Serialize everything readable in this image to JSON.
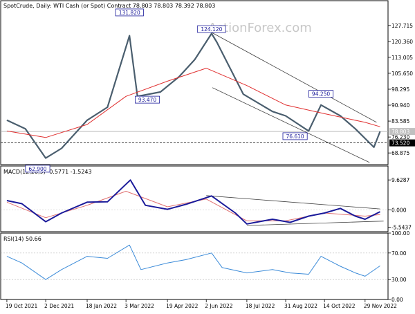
{
  "chart_data": {
    "type": "candlestick",
    "title": "SpotCrude, Daily:  WTI Cash (or Spot) Contract  78.803 78.803 78.392 78.803",
    "watermark": "ActionForex.com",
    "x_ticks": [
      "19 Oct 2021",
      "2 Dec 2021",
      "18 Jan 2022",
      "3 Mar 2022",
      "19 Apr 2022",
      "2 Jun 2022",
      "18 Jul 2022",
      "31 Aug 2022",
      "14 Oct 2022",
      "29 Nov 2022"
    ],
    "price": {
      "ylim": [
        63.5,
        135.0
      ],
      "y_ticks": [
        "127.715",
        "120.360",
        "113.005",
        "105.650",
        "98.295",
        "90.940",
        "83.585",
        "76.230",
        "68.875"
      ],
      "y_tick_values": [
        127.715,
        120.36,
        113.005,
        105.65,
        98.295,
        90.94,
        83.585,
        76.23,
        68.875
      ],
      "series": [
        {
          "name": "SpotCrude close",
          "color": "#4a5e6e",
          "x": [
            "2021-10-19",
            "2021-11-09",
            "2021-12-02",
            "2021-12-20",
            "2022-01-18",
            "2022-02-10",
            "2022-03-07",
            "2022-03-16",
            "2022-04-11",
            "2022-05-02",
            "2022-05-20",
            "2022-06-08",
            "2022-06-14",
            "2022-07-14",
            "2022-08-16",
            "2022-08-31",
            "2022-09-26",
            "2022-10-10",
            "2022-11-01",
            "2022-11-18",
            "2022-12-09",
            "2022-12-16"
          ],
          "values": [
            84.0,
            80.0,
            66.5,
            71.0,
            84.0,
            90.0,
            123.0,
            95.0,
            97.0,
            104.0,
            112.0,
            124.0,
            120.0,
            96.0,
            88.0,
            86.0,
            79.0,
            91.0,
            86.0,
            80.0,
            71.5,
            78.8
          ]
        },
        {
          "name": "Moving average",
          "color": "#e03030",
          "x": [
            "2021-10-19",
            "2021-12-02",
            "2022-01-18",
            "2022-03-03",
            "2022-04-19",
            "2022-06-02",
            "2022-07-18",
            "2022-08-31",
            "2022-10-14",
            "2022-11-29",
            "2022-12-16"
          ],
          "values": [
            79.0,
            76.0,
            82.0,
            95.0,
            102.0,
            108.0,
            100.0,
            91.0,
            87.0,
            83.0,
            81.0
          ]
        }
      ],
      "current_price_label": "78.803",
      "level_line": {
        "label": "73.520",
        "value": 73.52
      },
      "annotations": [
        {
          "text": "131.820",
          "x": "2022-03-07",
          "y": 131.82
        },
        {
          "text": "124.120",
          "x": "2022-06-08",
          "y": 124.12
        },
        {
          "text": "93.470",
          "x": "2022-03-15",
          "y": 93.47
        },
        {
          "text": "94.250",
          "x": "2022-10-10",
          "y": 94.25
        },
        {
          "text": "76.610",
          "x": "2022-09-26",
          "y": 76.61
        },
        {
          "text": "62.900",
          "x": "2021-12-02",
          "y": 62.9
        }
      ],
      "trend_channel": [
        {
          "x": [
            "2022-06-08",
            "2022-12-12"
          ],
          "values": [
            124.5,
            83.0
          ]
        },
        {
          "x": [
            "2022-06-09",
            "2022-12-04"
          ],
          "values": [
            99.0,
            64.5
          ]
        }
      ]
    },
    "macd": {
      "label": "MACD(12,26,9) -0.5771 -1.5243",
      "ylim": [
        -7.0,
        11.0
      ],
      "y_ticks": [
        "9.6287",
        "0.000",
        "-5.5437"
      ],
      "y_tick_values": [
        9.6287,
        0.0,
        -5.5437
      ],
      "series": [
        {
          "name": "MACD",
          "color": "#1a1a9a",
          "x": [
            "2021-10-19",
            "2021-11-05",
            "2021-12-02",
            "2021-12-20",
            "2022-01-18",
            "2022-02-10",
            "2022-03-08",
            "2022-03-25",
            "2022-04-19",
            "2022-05-10",
            "2022-06-08",
            "2022-07-05",
            "2022-07-18",
            "2022-08-16",
            "2022-09-05",
            "2022-09-26",
            "2022-10-14",
            "2022-11-01",
            "2022-11-18",
            "2022-11-29",
            "2022-12-16"
          ],
          "values": [
            3.0,
            2.0,
            -3.8,
            -1.0,
            2.5,
            2.6,
            9.6,
            1.5,
            0.2,
            1.8,
            4.5,
            -1.0,
            -4.5,
            -3.0,
            -4.0,
            -2.0,
            -1.0,
            0.5,
            -2.0,
            -3.0,
            -0.58
          ]
        },
        {
          "name": "Signal",
          "color": "#e07070",
          "x": [
            "2021-10-19",
            "2021-12-02",
            "2022-01-18",
            "2022-03-03",
            "2022-04-19",
            "2022-06-02",
            "2022-07-18",
            "2022-08-31",
            "2022-10-14",
            "2022-11-29",
            "2022-12-16"
          ],
          "values": [
            2.5,
            -2.5,
            1.5,
            6.0,
            1.0,
            3.5,
            -3.5,
            -3.5,
            -1.0,
            -2.0,
            -1.52
          ]
        }
      ],
      "trend_lines": [
        {
          "x": [
            "2022-06-02",
            "2022-12-16"
          ],
          "values": [
            4.6,
            0.3
          ]
        },
        {
          "x": [
            "2022-07-18",
            "2022-12-20"
          ],
          "values": [
            -5.0,
            -3.6
          ]
        }
      ]
    },
    "rsi": {
      "label": "RSI(14) 50.66",
      "ylim": [
        0,
        100
      ],
      "y_ticks": [
        "100.00",
        "70.00",
        "30.00",
        "0.00"
      ],
      "y_tick_values": [
        100,
        70,
        30,
        0
      ],
      "series": [
        {
          "name": "RSI",
          "color": "#3a8ad8",
          "x": [
            "2021-10-19",
            "2021-11-05",
            "2021-12-02",
            "2021-12-20",
            "2022-01-18",
            "2022-02-10",
            "2022-03-07",
            "2022-03-20",
            "2022-04-19",
            "2022-05-10",
            "2022-06-08",
            "2022-06-20",
            "2022-07-18",
            "2022-08-16",
            "2022-09-05",
            "2022-09-26",
            "2022-10-10",
            "2022-11-01",
            "2022-11-18",
            "2022-11-29",
            "2022-12-16"
          ],
          "values": [
            65.0,
            55.0,
            30.0,
            45.0,
            65.0,
            62.0,
            82.0,
            45.0,
            55.0,
            60.0,
            70.0,
            48.0,
            40.0,
            45.0,
            40.0,
            38.0,
            65.0,
            50.0,
            40.0,
            35.0,
            50.66
          ]
        }
      ],
      "levels": [
        70,
        30
      ]
    },
    "grid": false,
    "legend": "none"
  }
}
